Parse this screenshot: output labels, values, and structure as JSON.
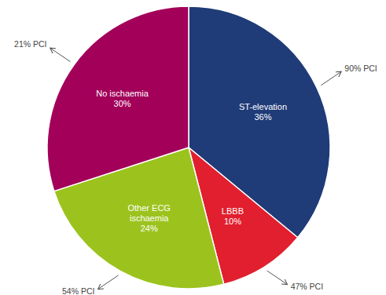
{
  "chart_data": {
    "type": "pie",
    "categories": [
      "ST-elevation",
      "LBBB",
      "Other ECG ischaemia",
      "No ischaemia"
    ],
    "values": [
      36,
      10,
      24,
      30
    ],
    "value_labels": [
      "36%",
      "10%",
      "24%",
      "30%"
    ],
    "colors": [
      "#1f3b78",
      "#e11f2e",
      "#9cc31d",
      "#a3005a"
    ],
    "annotations": [
      "90% PCI",
      "47% PCI",
      "54% PCI",
      "21% PCI"
    ],
    "data_labels": true
  }
}
